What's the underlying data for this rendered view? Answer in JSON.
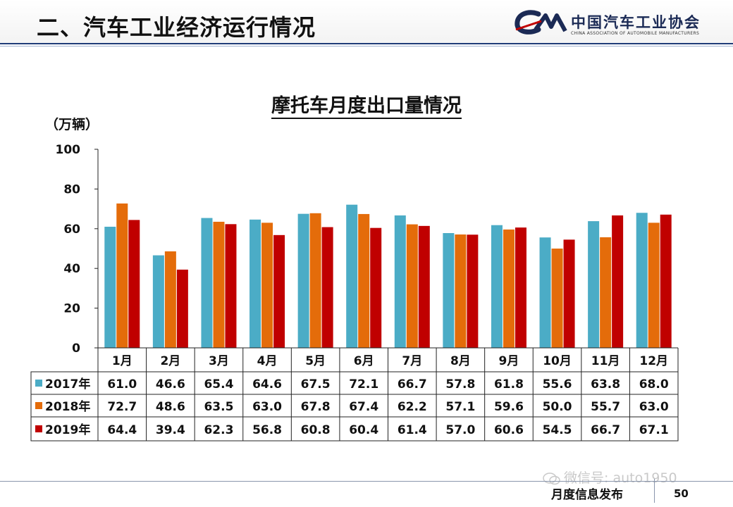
{
  "header": {
    "title": "二、汽车工业经济运行情况",
    "logo_name": "中国汽车工业协会",
    "logo_sub": "CHINA ASSOCIATION OF AUTOMOBILE MANUFACTURERS"
  },
  "footer": {
    "label": "月度信息发布",
    "page": "50",
    "watermark": "微信号: auto1950"
  },
  "colors": {
    "s2017": "#4bacc6",
    "s2018": "#e46c0a",
    "s2019": "#c00000",
    "brand": "#1b2a55"
  },
  "chart_data": {
    "type": "bar",
    "title": "摩托车月度出口量情况",
    "ylabel": "（万辆）",
    "ylim": [
      0,
      100
    ],
    "yticks": [
      "0",
      "20",
      "40",
      "60",
      "80",
      "100"
    ],
    "categories": [
      "1月",
      "2月",
      "3月",
      "4月",
      "5月",
      "6月",
      "7月",
      "8月",
      "9月",
      "10月",
      "11月",
      "12月"
    ],
    "series": [
      {
        "name": "2017年",
        "color": "#4bacc6",
        "values": [
          61.0,
          46.6,
          65.4,
          64.6,
          67.5,
          72.1,
          66.7,
          57.8,
          61.8,
          55.6,
          63.8,
          68.0
        ]
      },
      {
        "name": "2018年",
        "color": "#e46c0a",
        "values": [
          72.7,
          48.6,
          63.5,
          63.0,
          67.8,
          67.4,
          62.2,
          57.1,
          59.6,
          50.0,
          55.7,
          63.0
        ]
      },
      {
        "name": "2019年",
        "color": "#c00000",
        "values": [
          64.4,
          39.4,
          62.3,
          56.8,
          60.8,
          60.4,
          61.4,
          57.0,
          60.6,
          54.5,
          66.7,
          67.1
        ]
      }
    ],
    "table_values": [
      [
        "61.0",
        "46.6",
        "65.4",
        "64.6",
        "67.5",
        "72.1",
        "66.7",
        "57.8",
        "61.8",
        "55.6",
        "63.8",
        "68.0"
      ],
      [
        "72.7",
        "48.6",
        "63.5",
        "63.0",
        "67.8",
        "67.4",
        "62.2",
        "57.1",
        "59.6",
        "50.0",
        "55.7",
        "63.0"
      ],
      [
        "64.4",
        "39.4",
        "62.3",
        "56.8",
        "60.8",
        "60.4",
        "61.4",
        "57.0",
        "60.6",
        "54.5",
        "66.7",
        "67.1"
      ]
    ],
    "legend_placement": "data-table-left",
    "grid": false
  }
}
